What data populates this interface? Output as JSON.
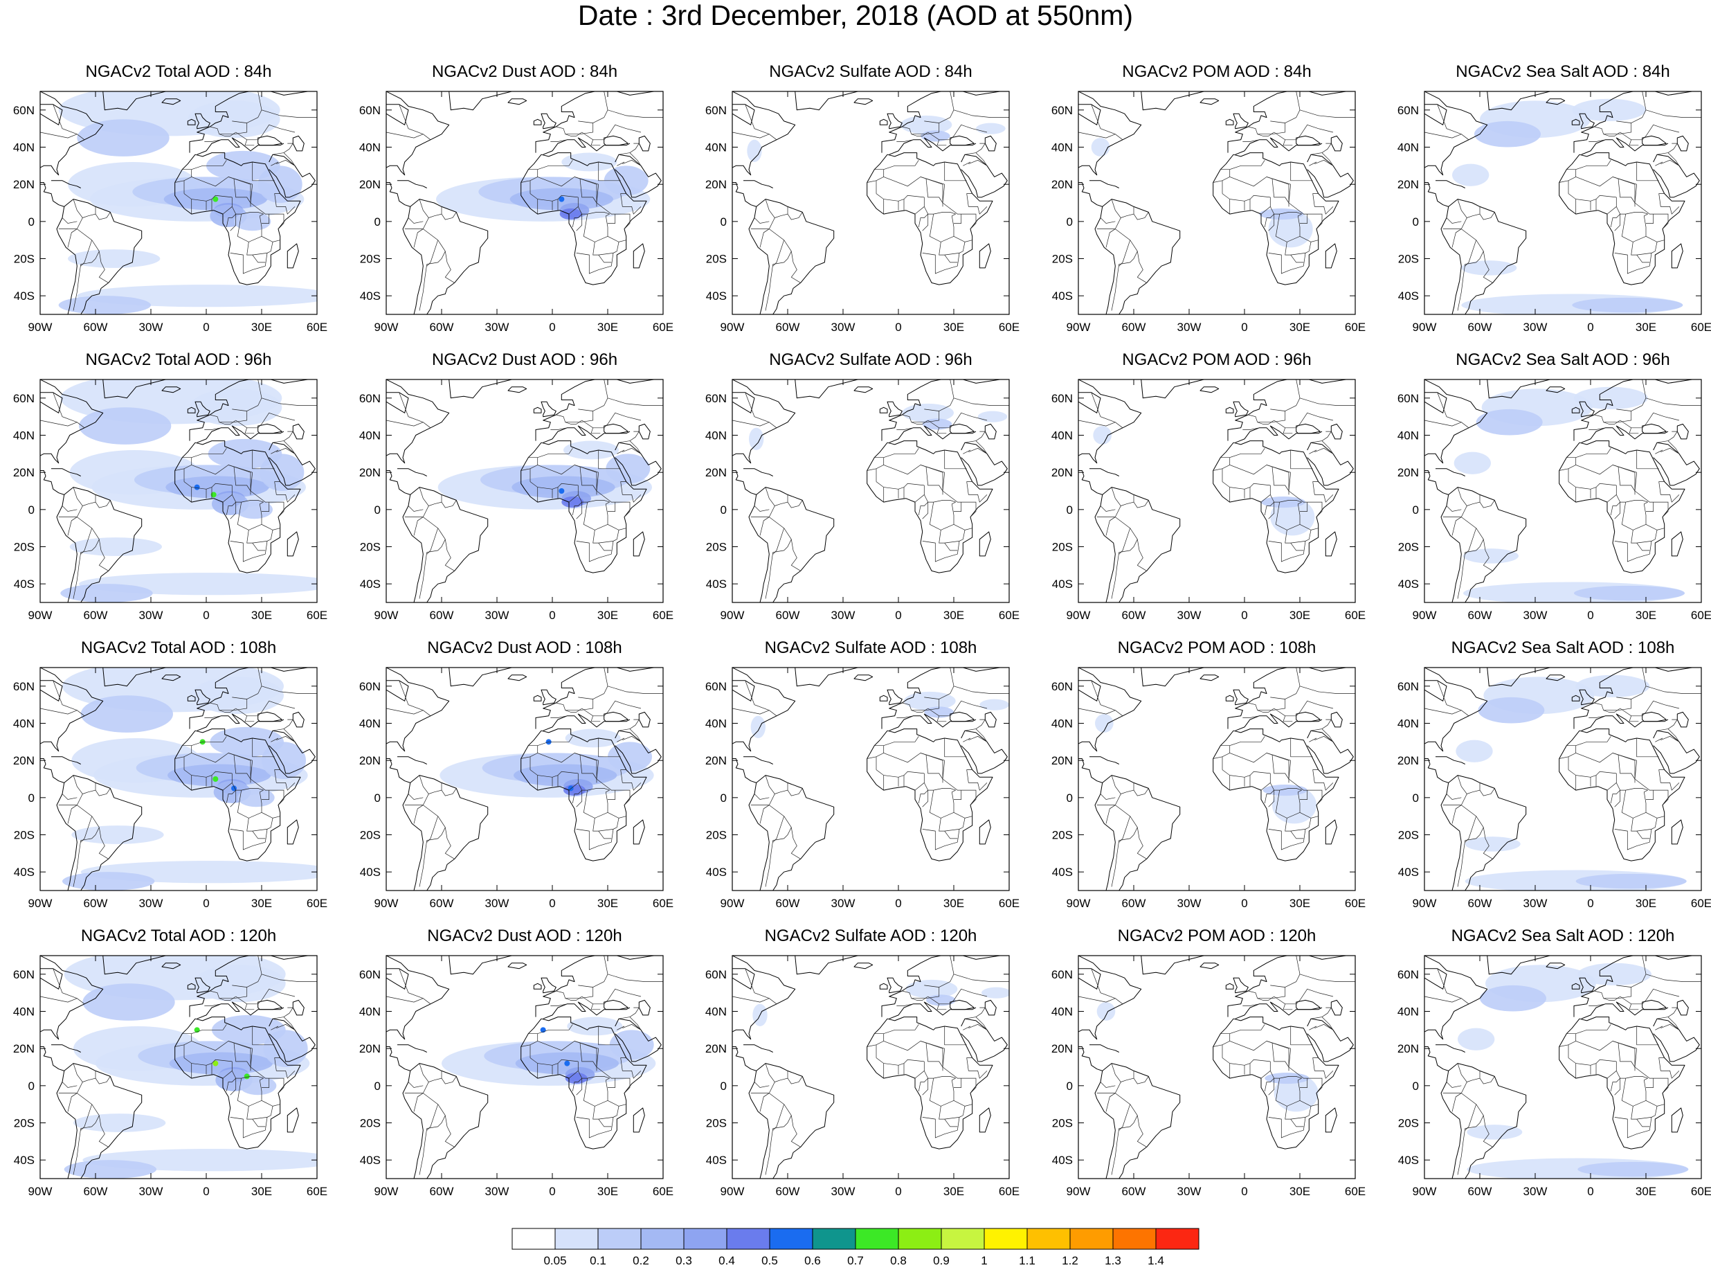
{
  "title": "Date : 3rd December, 2018 (AOD at 550nm)",
  "species": [
    "Total",
    "Dust",
    "Sulfate",
    "POM",
    "Sea Salt"
  ],
  "forecast_hours": [
    "84h",
    "96h",
    "108h",
    "120h"
  ],
  "panel_titles": [
    [
      "NGACv2 Total AOD : 84h",
      "NGACv2 Dust AOD : 84h",
      "NGACv2 Sulfate AOD : 84h",
      "NGACv2 POM AOD : 84h",
      "NGACv2 Sea Salt AOD : 84h"
    ],
    [
      "NGACv2 Total AOD : 96h",
      "NGACv2 Dust AOD : 96h",
      "NGACv2 Sulfate AOD : 96h",
      "NGACv2 POM AOD : 96h",
      "NGACv2 Sea Salt AOD : 96h"
    ],
    [
      "NGACv2 Total AOD : 108h",
      "NGACv2 Dust AOD : 108h",
      "NGACv2 Sulfate AOD : 108h",
      "NGACv2 POM AOD : 108h",
      "NGACv2 Sea Salt AOD : 108h"
    ],
    [
      "NGACv2 Total AOD : 120h",
      "NGACv2 Dust AOD : 120h",
      "NGACv2 Sulfate AOD : 120h",
      "NGACv2 POM AOD : 120h",
      "NGACv2 Sea Salt  AOD : 120h"
    ]
  ],
  "lat_labels": [
    "60N",
    "40N",
    "20N",
    "0",
    "20S",
    "40S"
  ],
  "lat_values": [
    60,
    40,
    20,
    0,
    -20,
    -40
  ],
  "lon_labels": [
    "90W",
    "60W",
    "30W",
    "0",
    "30E",
    "60E"
  ],
  "lon_values": [
    -90,
    -60,
    -30,
    0,
    30,
    60
  ],
  "map_extent": {
    "lon": [
      -90,
      60
    ],
    "lat": [
      -50,
      70
    ]
  },
  "colorbar": {
    "labels": [
      "0.05",
      "0.1",
      "0.2",
      "0.3",
      "0.4",
      "0.5",
      "0.6",
      "0.7",
      "0.8",
      "0.9",
      "1",
      "1.1",
      "1.2",
      "1.3",
      "1.4"
    ],
    "colors": [
      "#ffffff",
      "#d6e2fb",
      "#bccdf8",
      "#a4b9f4",
      "#8ea4f1",
      "#6a7ced",
      "#1a6cf0",
      "#0f958d",
      "#3ce826",
      "#8cee14",
      "#c7f540",
      "#fff200",
      "#fec000",
      "#fe9c00",
      "#fd7400",
      "#fc2712"
    ]
  },
  "colors": {
    "light": "#d6e2fb",
    "mid": "#bccdf8",
    "medium": "#a4b9f4",
    "strong": "#8ea4f1",
    "deep": "#6a7ced",
    "blue": "#1a6cf0",
    "green": "#3ce826",
    "lime": "#8cee14"
  }
}
